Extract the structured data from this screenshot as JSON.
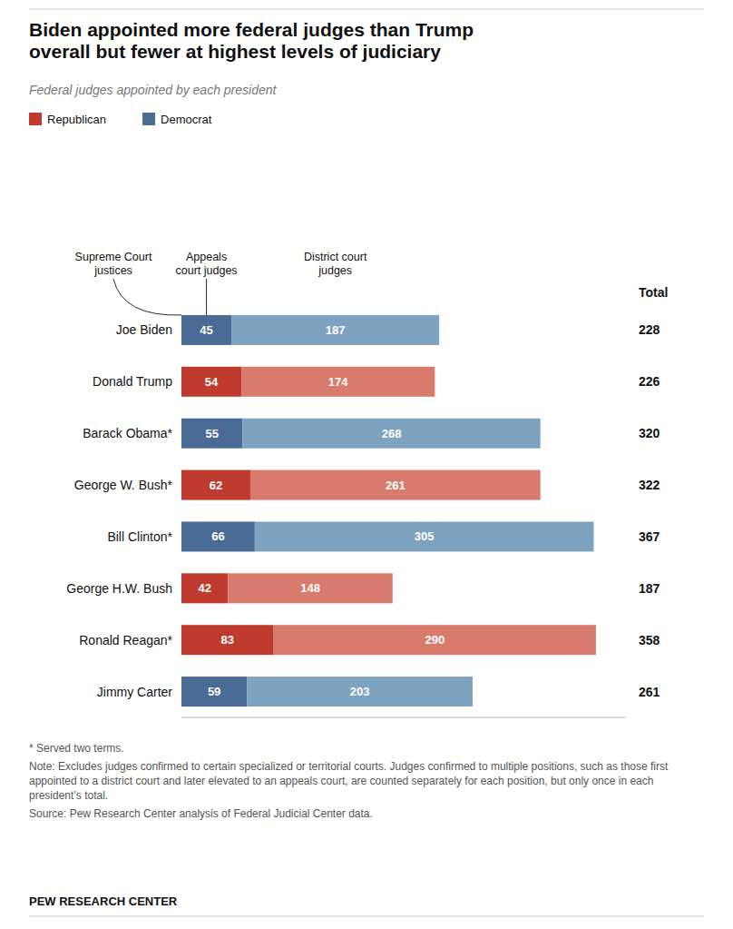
{
  "chart_data": {
    "type": "bar",
    "orientation": "horizontal",
    "stacked": true,
    "data_labels": true,
    "grid": false,
    "tick_labels": "y",
    "title": "Biden appointed more federal judges than Trump\noverall but fewer at highest levels of judiciary",
    "subtitle": "Federal judges appointed by each president",
    "categories": [
      "Joe Biden",
      "Donald Trump",
      "Barack Obama*",
      "George W. Bush*",
      "Bill Clinton*",
      "George H.W. Bush",
      "Ronald Reagan*",
      "Jimmy Carter"
    ],
    "series": [
      {
        "name": "Appeals\ncourt judges",
        "values": [
          45,
          54,
          55,
          62,
          66,
          42,
          83,
          59
        ],
        "colors": [
          "#4a6b96",
          "#bf3b2e",
          "#4a6b96",
          "#bf3b2e",
          "#4a6b96",
          "#bf3b2e",
          "#bf3b2e",
          "#4a6b96"
        ]
      },
      {
        "name": "District court\njudges",
        "values": [
          187,
          174,
          268,
          261,
          305,
          148,
          290,
          203
        ],
        "colors": [
          "#7da3c0",
          "#d97b6c",
          "#7da3c0",
          "#d97b6c",
          "#7da3c0",
          "#d97b6c",
          "#d97b6c",
          "#7da3c0"
        ]
      }
    ],
    "totals_label": "Total",
    "totals": [
      228,
      226,
      320,
      322,
      367,
      187,
      358,
      261
    ],
    "parties": [
      {
        "name": "Republican",
        "color": "#bf3b2e"
      },
      {
        "name": "Democrat",
        "color": "#4a6b96"
      }
    ],
    "annotations": [
      {
        "text": "Supreme Court\njustices"
      }
    ],
    "xlim": [
      0,
      400
    ],
    "xticks": [],
    "notes": [
      "* Served two terms.",
      "Note: Excludes judges confirmed to certain specialized or territorial courts. Judges confirmed to multiple positions, such as those first appointed to a district court and later elevated to an appeals court, are counted separately for each position, but only once in each president’s total.",
      "Source: Pew Research Center analysis of Federal Judicial Center data."
    ],
    "branding": "PEW RESEARCH CENTER"
  }
}
